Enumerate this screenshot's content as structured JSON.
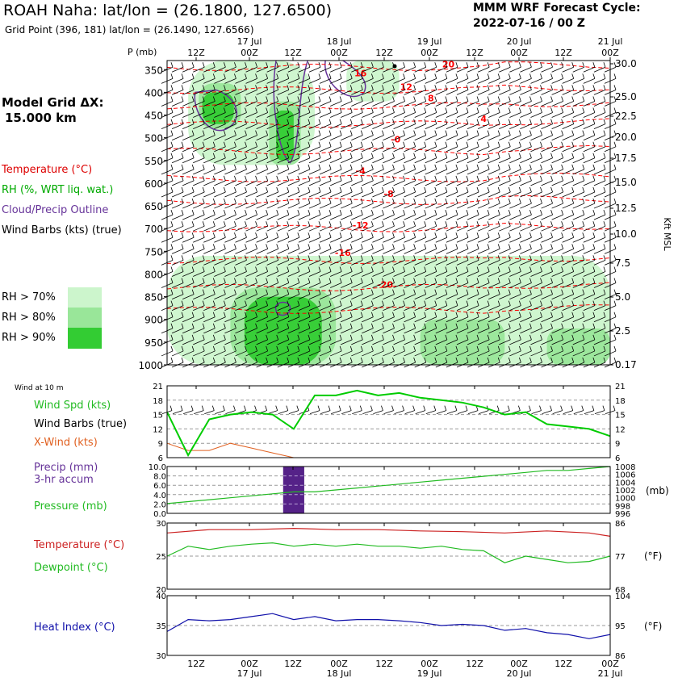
{
  "header": {
    "title": "ROAH Naha:  lat/lon = (26.1800, 127.6500)",
    "subtitle": "Grid Point (396, 181) lat/lon = (26.1490, 127.6566)",
    "cycle_label": "MMM WRF Forecast Cycle:",
    "cycle_value": "2022-07-16 / 00  Z"
  },
  "model_grid": {
    "label": "Model Grid ΔX:",
    "value": "15.000 km"
  },
  "legend": {
    "temperature": "Temperature (°C)",
    "rh": "RH (%, WRT liq. wat.)",
    "cloud": "Cloud/Precip Outline",
    "wind_barbs": "Wind Barbs (kts) (true)",
    "rh_levels": [
      "RH > 70%",
      "RH > 80%",
      "RH > 90%"
    ]
  },
  "colors": {
    "rh70": "#ccf5cc",
    "rh80": "#99e699",
    "rh90": "#33cc33",
    "temperature": "#ff0000",
    "cloud": "#663399",
    "wind": "#00cc00",
    "xwind": "#e06020",
    "precip": "#552288",
    "pressure": "#22bb22",
    "temp_line": "#cc2222",
    "dewpoint": "#22bb22",
    "heat_index": "#1111aa"
  },
  "time_axis": {
    "top_dates": [
      "17 Jul",
      "18 Jul",
      "19 Jul",
      "20 Jul",
      "21 Jul"
    ],
    "hours": [
      "12Z",
      "00Z",
      "12Z",
      "00Z",
      "12Z",
      "00Z",
      "12Z",
      "00Z",
      "12Z",
      "00Z"
    ],
    "bottom_dates": [
      "17 Jul",
      "18 Jul",
      "19 Jul",
      "20 Jul",
      "21 Jul"
    ]
  },
  "chart_data": [
    {
      "type": "heatmap",
      "name": "sounding",
      "y_label": "P (mb)",
      "right_label": "Kft MSL",
      "pressure_ticks": [
        350,
        400,
        450,
        500,
        550,
        600,
        650,
        700,
        750,
        800,
        850,
        900,
        950,
        1000
      ],
      "kft_ticks": [
        "30.0",
        "25.0",
        "22.5",
        "20.0",
        "17.5",
        "15.0",
        "12.5",
        "10.0",
        "7.5",
        "5.0",
        "2.5",
        "0.17"
      ],
      "temp_contour_labels": [
        "-20",
        "-16",
        "-12",
        "-8",
        "-4",
        "-0",
        "4",
        "8",
        "12",
        "16",
        "20"
      ],
      "rh_regions": [
        {
          "level": "rh70",
          "time_h": [
            6,
            42
          ],
          "p": [
            330,
            560
          ]
        },
        {
          "level": "rh80",
          "time_h": [
            9,
            21
          ],
          "p": [
            380,
            480
          ]
        },
        {
          "level": "rh90",
          "time_h": [
            10,
            19
          ],
          "p": [
            400,
            470
          ]
        },
        {
          "level": "rh80",
          "time_h": [
            29,
            38
          ],
          "p": [
            420,
            560
          ]
        },
        {
          "level": "rh90",
          "time_h": [
            31,
            36
          ],
          "p": [
            440,
            550
          ]
        },
        {
          "level": "rh70",
          "time_h": [
            51,
            66
          ],
          "p": [
            330,
            420
          ]
        },
        {
          "level": "rh70",
          "time_h": [
            0,
            126
          ],
          "p": [
            760,
            1000
          ]
        },
        {
          "level": "rh80",
          "time_h": [
            18,
            48
          ],
          "p": [
            830,
            1000
          ]
        },
        {
          "level": "rh90",
          "time_h": [
            22,
            44
          ],
          "p": [
            850,
            1000
          ]
        },
        {
          "level": "rh80",
          "time_h": [
            72,
            96
          ],
          "p": [
            900,
            1000
          ]
        },
        {
          "level": "rh80",
          "time_h": [
            108,
            126
          ],
          "p": [
            920,
            1000
          ]
        }
      ]
    },
    {
      "type": "line",
      "name": "surface-wind",
      "title": "Wind at 10 m",
      "y_ticks": [
        6,
        9,
        12,
        15,
        18,
        21
      ],
      "ylim": [
        6,
        21
      ],
      "series": [
        {
          "name": "Wind Spd (kts)",
          "t_h": [
            0,
            6,
            12,
            18,
            24,
            30,
            36,
            42,
            48,
            54,
            60,
            66,
            72,
            78,
            84,
            90,
            96,
            102,
            108,
            114,
            120,
            126
          ],
          "values": [
            15.5,
            6.5,
            14,
            15,
            15.5,
            15,
            12,
            19,
            19,
            20,
            19,
            19.5,
            18.5,
            18,
            17.5,
            16.5,
            15,
            15.5,
            13,
            12.5,
            12,
            10.5
          ]
        },
        {
          "name": "X-Wind (kts)",
          "t_h": [
            0,
            6,
            12,
            18,
            24,
            30,
            36,
            42,
            48,
            54,
            60,
            66,
            72,
            78,
            84,
            90,
            96,
            102,
            108,
            114,
            120,
            126
          ],
          "values": [
            9,
            7.5,
            7.5,
            9,
            8,
            7,
            6,
            6,
            6,
            6,
            6,
            6,
            6,
            6,
            6,
            6,
            6,
            6,
            6,
            6,
            6,
            6
          ]
        }
      ],
      "labels": {
        "spd": "Wind Spd (kts)",
        "barbs": "Wind Barbs (true)",
        "xwind": "X-Wind (kts)"
      }
    },
    {
      "type": "bar",
      "name": "precip-pressure",
      "left_ticks": [
        "10.0",
        "8.0",
        "6.0",
        "4.0",
        "2.0",
        "0.0"
      ],
      "right_ticks": [
        "1008",
        "1006",
        "1004",
        "1002",
        "1000",
        "998",
        "996"
      ],
      "right_unit": "(mb)",
      "precip": {
        "t_h": [
          [
            33,
            39
          ]
        ],
        "mm": [
          10.0
        ]
      },
      "pressure": {
        "t_h": [
          0,
          6,
          12,
          18,
          24,
          30,
          36,
          42,
          48,
          54,
          60,
          66,
          72,
          78,
          84,
          90,
          96,
          102,
          108,
          114,
          120,
          126
        ],
        "mb": [
          998.5,
          999,
          999.5,
          1000,
          1000.5,
          1001,
          1001.5,
          1001.5,
          1002,
          1002.5,
          1003,
          1003.5,
          1004,
          1004.5,
          1005,
          1005.5,
          1006,
          1006.5,
          1007,
          1007,
          1007.5,
          1008
        ]
      },
      "labels": {
        "precip": "Precip (mm)",
        "accum": "3-hr accum",
        "pressure": "Pressure (mb)"
      }
    },
    {
      "type": "line",
      "name": "temp-dew",
      "left_ticks": [
        "30",
        "25",
        "20"
      ],
      "right_ticks": [
        "86",
        "77",
        "68"
      ],
      "right_unit": "(°F)",
      "ylim": [
        20,
        30
      ],
      "series": [
        {
          "name": "Temperature (°C)",
          "t_h": [
            0,
            12,
            24,
            36,
            48,
            60,
            72,
            84,
            96,
            108,
            120,
            126
          ],
          "values": [
            28.5,
            29,
            29,
            29.2,
            29,
            29,
            28.8,
            28.7,
            28.5,
            28.8,
            28.5,
            28
          ]
        },
        {
          "name": "Dewpoint (°C)",
          "t_h": [
            0,
            6,
            12,
            18,
            24,
            30,
            36,
            42,
            48,
            54,
            60,
            66,
            72,
            78,
            84,
            90,
            96,
            102,
            108,
            114,
            120,
            126
          ],
          "values": [
            25,
            26.5,
            26,
            26.5,
            26.8,
            27,
            26.5,
            26.8,
            26.5,
            26.8,
            26.5,
            26.5,
            26.2,
            26.5,
            26,
            25.8,
            24,
            25,
            24.5,
            24,
            24.2,
            25
          ]
        }
      ],
      "labels": {
        "temperature": "Temperature (°C)",
        "dewpoint": "Dewpoint (°C)"
      }
    },
    {
      "type": "line",
      "name": "heat-index",
      "left_ticks": [
        "40",
        "35",
        "30"
      ],
      "right_ticks": [
        "104",
        "95",
        "86"
      ],
      "right_unit": "(°F)",
      "ylim": [
        30,
        40
      ],
      "series": [
        {
          "name": "Heat Index (°C)",
          "t_h": [
            0,
            6,
            12,
            18,
            24,
            30,
            36,
            42,
            48,
            54,
            60,
            66,
            72,
            78,
            84,
            90,
            96,
            102,
            108,
            114,
            120,
            126
          ],
          "values": [
            34,
            36,
            35.8,
            36,
            36.5,
            37,
            36,
            36.5,
            35.8,
            36,
            36,
            35.8,
            35.5,
            35,
            35.2,
            35,
            34.2,
            34.5,
            33.8,
            33.5,
            32.8,
            33.5
          ]
        }
      ],
      "labels": {
        "heat_index": "Heat Index (°C)"
      }
    }
  ]
}
